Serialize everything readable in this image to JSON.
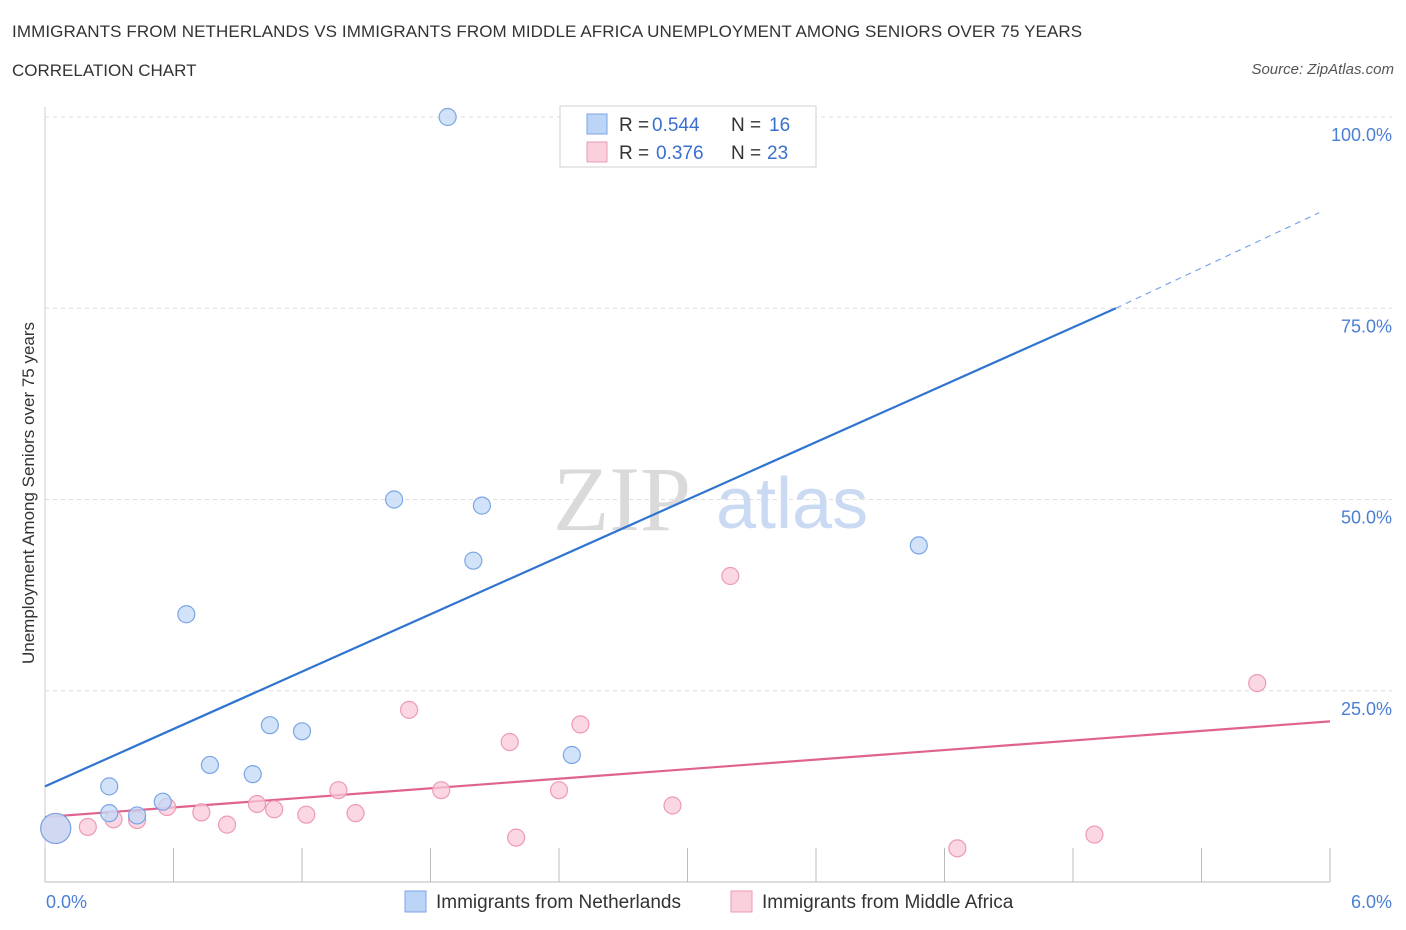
{
  "title": "IMMIGRANTS FROM NETHERLANDS VS IMMIGRANTS FROM MIDDLE AFRICA UNEMPLOYMENT AMONG SENIORS OVER 75 YEARS",
  "subtitle": "CORRELATION CHART",
  "source": "Source: ZipAtlas.com",
  "watermark": {
    "zip": "ZIP",
    "atlas": "atlas"
  },
  "legend_top": {
    "rows": [
      {
        "r_label": "R = ",
        "r_value": "0.544",
        "n_label": "N = ",
        "n_value": "16",
        "color": "#a9c8f2"
      },
      {
        "r_label": "R = ",
        "r_value": "0.376",
        "n_label": "N = ",
        "n_value": "23",
        "color": "#f5b8ca"
      }
    ]
  },
  "colors": {
    "blue": "#4a86d8",
    "blue_fill": "#c3d8f5",
    "pink": "#e46a95",
    "pink_fill": "#f8cad8",
    "grid": "#dddddd",
    "tick_text": "#4a7fd4"
  },
  "chart_data": {
    "type": "scatter",
    "title": "IMMIGRANTS FROM NETHERLANDS VS IMMIGRANTS FROM MIDDLE AFRICA UNEMPLOYMENT AMONG SENIORS OVER 75 YEARS",
    "xlabel": "",
    "ylabel": "Unemployment Among Seniors over 75 years",
    "xlim": [
      0,
      6
    ],
    "ylim": [
      0,
      100
    ],
    "x_tick_labels": [
      "0.0%",
      "6.0%"
    ],
    "y_ticks": [
      25,
      50,
      75,
      100
    ],
    "y_tick_labels": [
      "25.0%",
      "50.0%",
      "75.0%",
      "100.0%"
    ],
    "grid": true,
    "series": [
      {
        "name": "Immigrants from Netherlands",
        "color": "#4a86d8",
        "r": 0.544,
        "n": 16,
        "points": [
          {
            "x": 0.05,
            "y": 7.0,
            "big": true
          },
          {
            "x": 0.3,
            "y": 9.0
          },
          {
            "x": 0.3,
            "y": 12.5
          },
          {
            "x": 0.43,
            "y": 8.7
          },
          {
            "x": 0.55,
            "y": 10.5
          },
          {
            "x": 0.66,
            "y": 35.0
          },
          {
            "x": 0.77,
            "y": 15.3
          },
          {
            "x": 0.97,
            "y": 14.1
          },
          {
            "x": 1.05,
            "y": 20.5
          },
          {
            "x": 1.2,
            "y": 19.7
          },
          {
            "x": 1.63,
            "y": 50.0
          },
          {
            "x": 1.88,
            "y": 100.0
          },
          {
            "x": 2.0,
            "y": 42.0
          },
          {
            "x": 2.04,
            "y": 49.2
          },
          {
            "x": 2.46,
            "y": 16.6
          },
          {
            "x": 4.08,
            "y": 44.0
          }
        ],
        "trend": {
          "x0": 0.0,
          "y0": 12.5,
          "x1": 5.0,
          "y1": 75.0,
          "dash_x1": 5.95,
          "dash_y1": 87.5
        }
      },
      {
        "name": "Immigrants from Middle Africa",
        "color": "#e46a95",
        "r": 0.376,
        "n": 23,
        "points": [
          {
            "x": 0.05,
            "y": 7.0,
            "big": true
          },
          {
            "x": 0.2,
            "y": 7.2
          },
          {
            "x": 0.32,
            "y": 8.2
          },
          {
            "x": 0.43,
            "y": 8.1
          },
          {
            "x": 0.57,
            "y": 9.8
          },
          {
            "x": 0.73,
            "y": 9.1
          },
          {
            "x": 0.85,
            "y": 7.5
          },
          {
            "x": 0.99,
            "y": 10.2
          },
          {
            "x": 1.07,
            "y": 9.5
          },
          {
            "x": 1.22,
            "y": 8.8
          },
          {
            "x": 1.37,
            "y": 12.0
          },
          {
            "x": 1.45,
            "y": 9.0
          },
          {
            "x": 1.7,
            "y": 22.5
          },
          {
            "x": 1.85,
            "y": 12.0
          },
          {
            "x": 2.17,
            "y": 18.3
          },
          {
            "x": 2.2,
            "y": 5.8
          },
          {
            "x": 2.4,
            "y": 12.0
          },
          {
            "x": 2.5,
            "y": 20.6
          },
          {
            "x": 2.93,
            "y": 10.0
          },
          {
            "x": 3.2,
            "y": 40.0
          },
          {
            "x": 4.26,
            "y": 4.4
          },
          {
            "x": 4.9,
            "y": 6.2
          },
          {
            "x": 5.66,
            "y": 26.0
          }
        ],
        "trend": {
          "x0": 0.0,
          "y0": 8.5,
          "x1": 6.0,
          "y1": 21.0
        }
      }
    ]
  }
}
